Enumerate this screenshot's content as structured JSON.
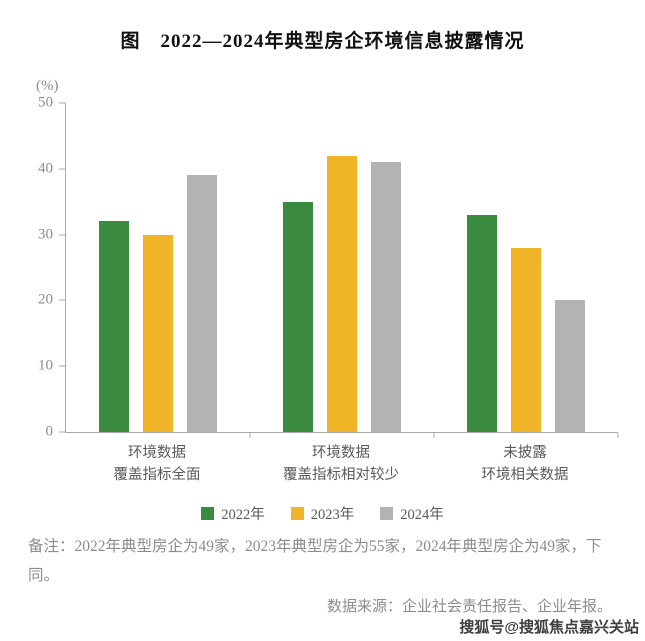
{
  "title": "图　2022—2024年典型房企环境信息披露情况",
  "chart_data": {
    "type": "bar",
    "title": "图 2022—2024年典型房企环境信息披露情况",
    "unit_label": "(%)",
    "categories": [
      "环境数据\n覆盖指标全面",
      "环境数据\n覆盖指标相对较少",
      "未披露\n环境相关数据"
    ],
    "series": [
      {
        "name": "2022年",
        "color": "#3a8a3f",
        "values": [
          32,
          35,
          33
        ]
      },
      {
        "name": "2023年",
        "color": "#f0b429",
        "values": [
          30,
          42,
          28
        ]
      },
      {
        "name": "2024年",
        "color": "#b3b3b3",
        "values": [
          39,
          41,
          20
        ]
      }
    ],
    "ylim": [
      0,
      50
    ],
    "yticks": [
      0,
      10,
      20,
      30,
      40,
      50
    ],
    "xlabel": "",
    "ylabel": "(%)",
    "grid": false,
    "legend_position": "bottom"
  },
  "notes": "备注：2022年典型房企为49家，2023年典型房企为55家，2024年典型房企为49家，下同。",
  "source": "数据来源：企业社会责任报告、企业年报。",
  "watermark": "搜狐号@搜狐焦点嘉兴关站"
}
